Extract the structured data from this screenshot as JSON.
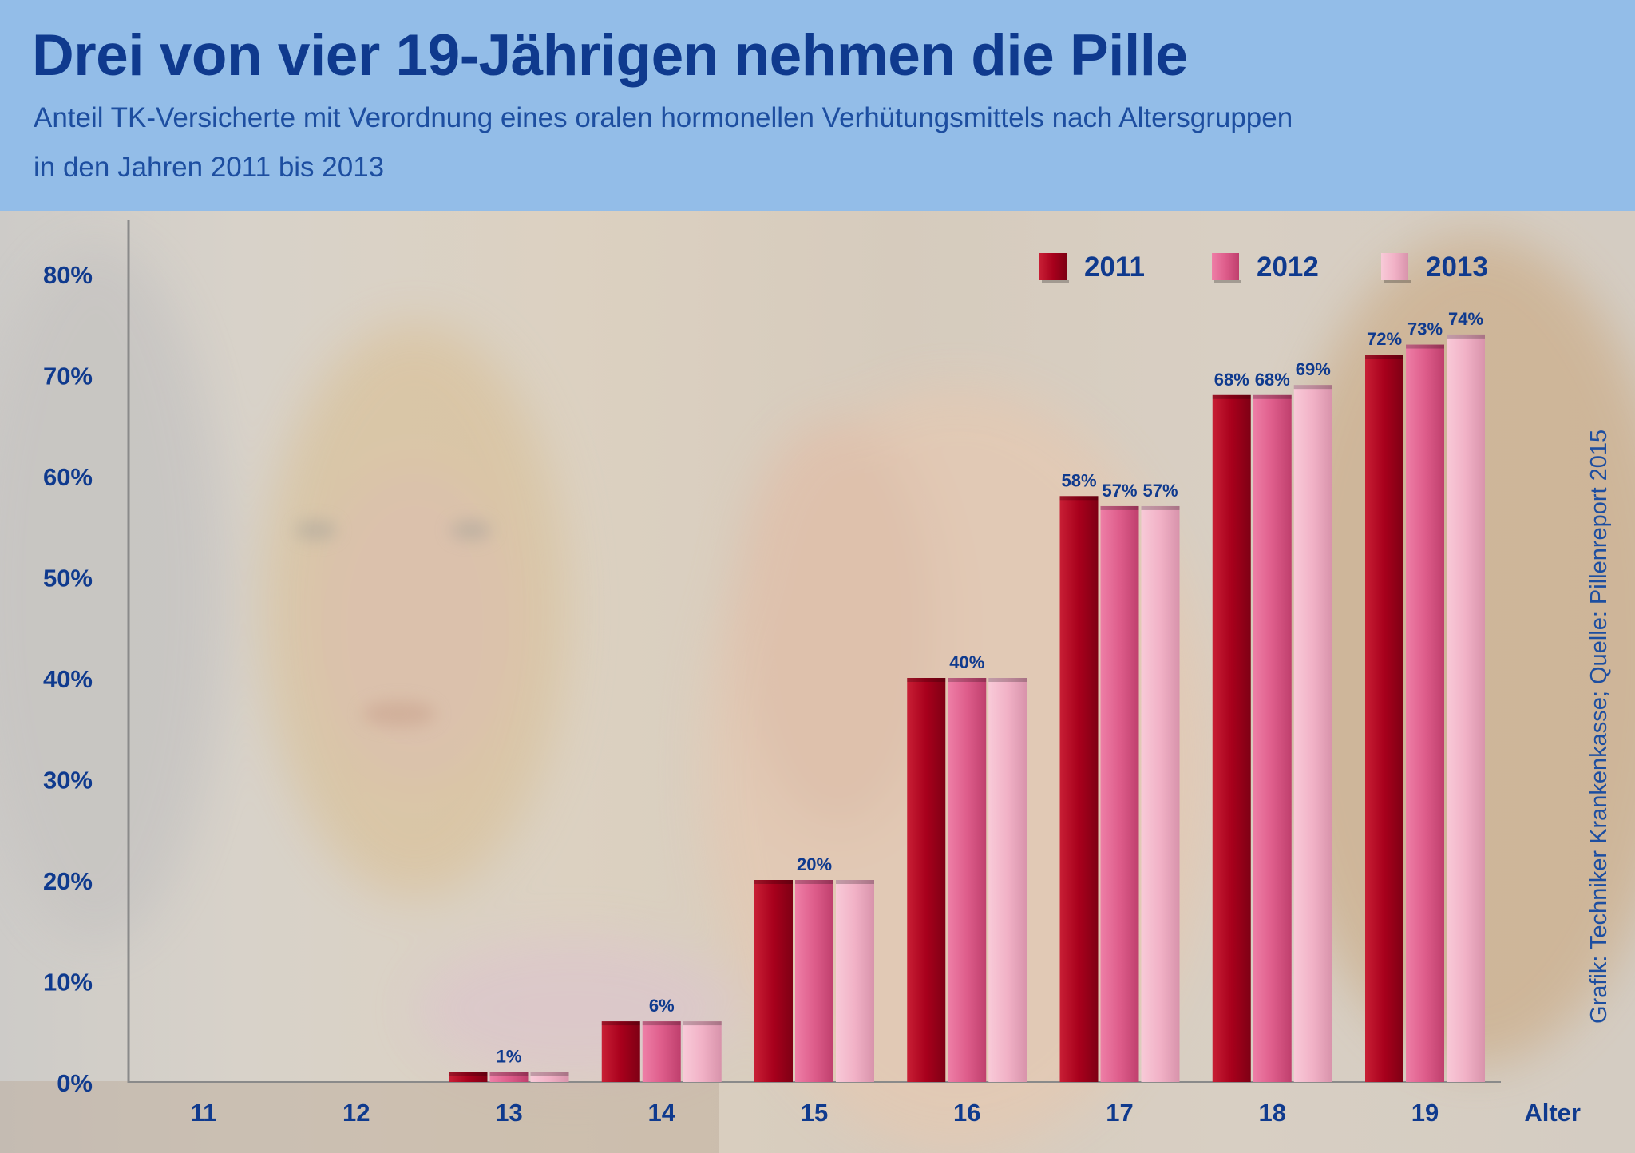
{
  "header": {
    "title": "Drei von vier 19-Jährigen nehmen die Pille",
    "subtitle_line1": "Anteil TK-Versicherte mit Verordnung eines oralen hormonellen Verhütungsmittels nach Altersgruppen",
    "subtitle_line2": "in den Jahren 2011 bis 2013"
  },
  "source": "Grafik: Techniker Krankenkasse; Quelle: Pillenreport 2015",
  "colors": {
    "header_bg": "#93bde8",
    "text_blue": "#0f3a8e",
    "series_2011": "#a8001c",
    "series_2012": "#de5d8b",
    "series_2013": "#f1b1c6"
  },
  "chart_data": {
    "type": "bar",
    "xlabel": "Alter",
    "ylabel": "",
    "categories": [
      "11",
      "12",
      "13",
      "14",
      "15",
      "16",
      "17",
      "18",
      "19"
    ],
    "series": [
      {
        "name": "2011",
        "values": [
          0,
          0,
          1,
          6,
          20,
          40,
          58,
          68,
          72
        ]
      },
      {
        "name": "2012",
        "values": [
          0,
          0,
          1,
          6,
          20,
          40,
          57,
          68,
          73
        ]
      },
      {
        "name": "2013",
        "values": [
          0,
          0,
          1,
          6,
          20,
          40,
          57,
          69,
          74
        ]
      }
    ],
    "data_labels": [
      {
        "category": "13",
        "series": "2012",
        "text": "1%"
      },
      {
        "category": "14",
        "series": "2012",
        "text": "6%"
      },
      {
        "category": "15",
        "series": "2012",
        "text": "20%"
      },
      {
        "category": "16",
        "series": "2012",
        "text": "40%"
      },
      {
        "category": "17",
        "series": "2011",
        "text": "58%"
      },
      {
        "category": "17",
        "series": "2012",
        "text": "57%"
      },
      {
        "category": "17",
        "series": "2013",
        "text": "57%"
      },
      {
        "category": "18",
        "series": "2011",
        "text": "68%"
      },
      {
        "category": "18",
        "series": "2012",
        "text": "68%"
      },
      {
        "category": "18",
        "series": "2013",
        "text": "69%"
      },
      {
        "category": "19",
        "series": "2011",
        "text": "72%"
      },
      {
        "category": "19",
        "series": "2012",
        "text": "73%"
      },
      {
        "category": "19",
        "series": "2013",
        "text": "74%"
      }
    ],
    "yticks": [
      "0%",
      "10%",
      "20%",
      "30%",
      "40%",
      "50%",
      "60%",
      "70%",
      "80%"
    ],
    "ylim": [
      0,
      85
    ],
    "grid": false,
    "legend_position": "top-right"
  }
}
